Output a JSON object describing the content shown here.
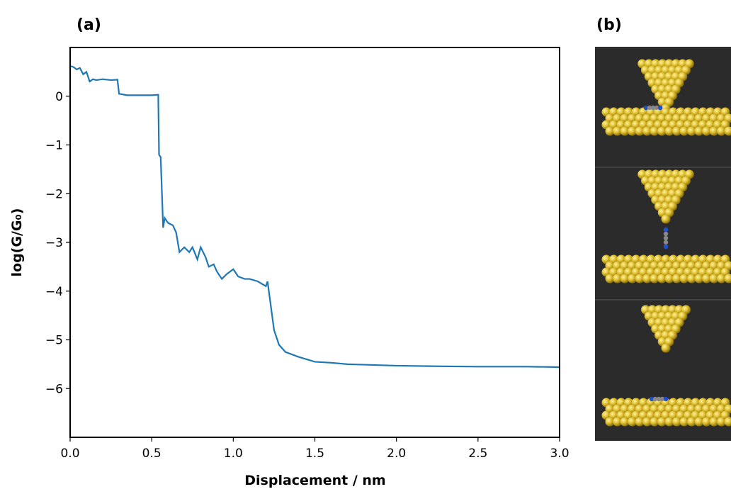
{
  "chart_data": {
    "type": "line",
    "title": "(a)",
    "image_panel_label": "(b)",
    "x_label": "Displacement / nm",
    "y_label": "log(G/G₀)",
    "color": "#1f77b4",
    "x": [
      0,
      0.02,
      0.04,
      0.06,
      0.08,
      0.1,
      0.12,
      0.14,
      0.16,
      0.2,
      0.25,
      0.29,
      0.3,
      0.35,
      0.4,
      0.45,
      0.5,
      0.54,
      0.545,
      0.555,
      0.565,
      0.57,
      0.58,
      0.6,
      0.63,
      0.65,
      0.67,
      0.7,
      0.73,
      0.75,
      0.78,
      0.8,
      0.83,
      0.85,
      0.88,
      0.9,
      0.93,
      0.96,
      1.0,
      1.03,
      1.07,
      1.1,
      1.15,
      1.2,
      1.21,
      1.23,
      1.25,
      1.28,
      1.32,
      1.4,
      1.5,
      1.6,
      1.7,
      1.8,
      2.0,
      2.2,
      2.5,
      2.8,
      3.0
    ],
    "values": [
      0.62,
      0.6,
      0.55,
      0.58,
      0.45,
      0.5,
      0.3,
      0.35,
      0.33,
      0.35,
      0.33,
      0.34,
      0.05,
      0.02,
      0.02,
      0.02,
      0.02,
      0.03,
      -1.2,
      -1.25,
      -2.2,
      -2.7,
      -2.5,
      -2.6,
      -2.65,
      -2.8,
      -3.2,
      -3.1,
      -3.2,
      -3.1,
      -3.35,
      -3.1,
      -3.3,
      -3.5,
      -3.45,
      -3.6,
      -3.75,
      -3.65,
      -3.55,
      -3.7,
      -3.75,
      -3.75,
      -3.8,
      -3.9,
      -3.8,
      -4.3,
      -4.8,
      -5.1,
      -5.25,
      -5.35,
      -5.45,
      -5.47,
      -5.5,
      -5.51,
      -5.53,
      -5.54,
      -5.55,
      -5.55,
      -5.56
    ],
    "xlim": [
      0,
      3.0
    ],
    "ylim": [
      -7,
      1
    ],
    "xticks": [
      {
        "value": 0,
        "label": "0.0"
      },
      0.5,
      {
        "value": 1,
        "label": "1.0"
      },
      1.5,
      {
        "value": 2,
        "label": "2.0"
      },
      2.5,
      {
        "value": 3,
        "label": "3.0"
      }
    ],
    "yticks": [
      0,
      {
        "value": -1,
        "label": "−1"
      },
      {
        "value": -2,
        "label": "−2"
      },
      {
        "value": -3,
        "label": "−3"
      },
      {
        "value": -4,
        "label": "−4"
      },
      {
        "value": -5,
        "label": "−5"
      },
      {
        "value": -6,
        "label": "−6"
      }
    ]
  }
}
